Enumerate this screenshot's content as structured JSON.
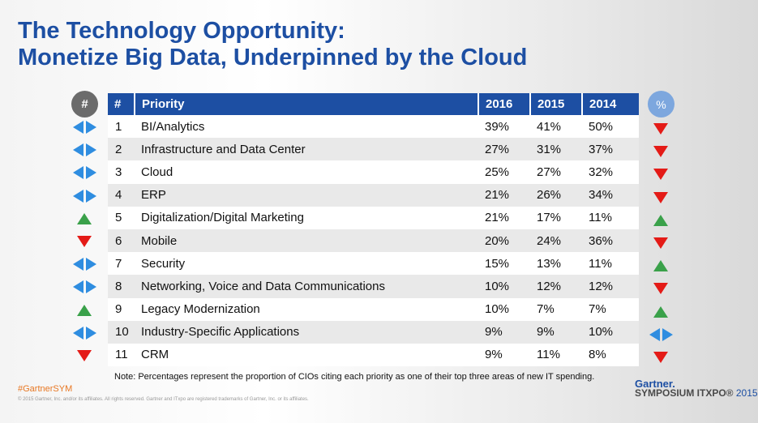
{
  "title_line1": "The Technology Opportunity:",
  "title_line2": "Monetize Big Data, Underpinned by the Cloud",
  "left_badge": "#",
  "right_badge": "%",
  "table": {
    "headers": [
      "#",
      "Priority",
      "2016",
      "2015",
      "2014"
    ],
    "rows": [
      {
        "num": "1",
        "priority": "BI/Analytics",
        "y2016": "39%",
        "y2015": "41%",
        "y2014": "50%",
        "rank_trend": "left-right",
        "pct_trend": "down"
      },
      {
        "num": "2",
        "priority": "Infrastructure and Data Center",
        "y2016": "27%",
        "y2015": "31%",
        "y2014": "37%",
        "rank_trend": "left-right",
        "pct_trend": "down"
      },
      {
        "num": "3",
        "priority": "Cloud",
        "y2016": "25%",
        "y2015": "27%",
        "y2014": "32%",
        "rank_trend": "left-right",
        "pct_trend": "down"
      },
      {
        "num": "4",
        "priority": "ERP",
        "y2016": "21%",
        "y2015": "26%",
        "y2014": "34%",
        "rank_trend": "left-right",
        "pct_trend": "down"
      },
      {
        "num": "5",
        "priority": "Digitalization/Digital Marketing",
        "y2016": "21%",
        "y2015": "17%",
        "y2014": "11%",
        "rank_trend": "up",
        "pct_trend": "up"
      },
      {
        "num": "6",
        "priority": "Mobile",
        "y2016": "20%",
        "y2015": "24%",
        "y2014": "36%",
        "rank_trend": "down",
        "pct_trend": "down"
      },
      {
        "num": "7",
        "priority": "Security",
        "y2016": "15%",
        "y2015": "13%",
        "y2014": "11%",
        "rank_trend": "left-right",
        "pct_trend": "up"
      },
      {
        "num": "8",
        "priority": "Networking, Voice and Data Communications",
        "y2016": "10%",
        "y2015": "12%",
        "y2014": "12%",
        "rank_trend": "left-right",
        "pct_trend": "down"
      },
      {
        "num": "9",
        "priority": "Legacy Modernization",
        "y2016": "10%",
        "y2015": "7%",
        "y2014": "7%",
        "rank_trend": "up",
        "pct_trend": "up"
      },
      {
        "num": "10",
        "priority": "Industry-Specific Applications",
        "y2016": "9%",
        "y2015": "9%",
        "y2014": "10%",
        "rank_trend": "left-right",
        "pct_trend": "left-right"
      },
      {
        "num": "11",
        "priority": "CRM",
        "y2016": "9%",
        "y2015": "11%",
        "y2014": "8%",
        "rank_trend": "down",
        "pct_trend": "down"
      }
    ]
  },
  "note": "Note: Percentages represent the proportion of CIOs citing each priority as one of their top three areas of new IT spending.",
  "hashtag": "#GartnerSYM",
  "copyright": "© 2015 Gartner, Inc. and/or its affiliates. All rights reserved. Gartner and ITxpo are registered trademarks of Gartner, Inc. or its affiliates.",
  "logo": {
    "brand": "Gartner.",
    "event": "SYMPOSIUM ITXPO®",
    "year": "2015"
  },
  "colors": {
    "title": "#1d4fa3",
    "header_bg": "#1d4fa3",
    "up": "#3aa14a",
    "down": "#e41b17",
    "steady": "#2f8de0",
    "hashtag": "#e87722"
  }
}
